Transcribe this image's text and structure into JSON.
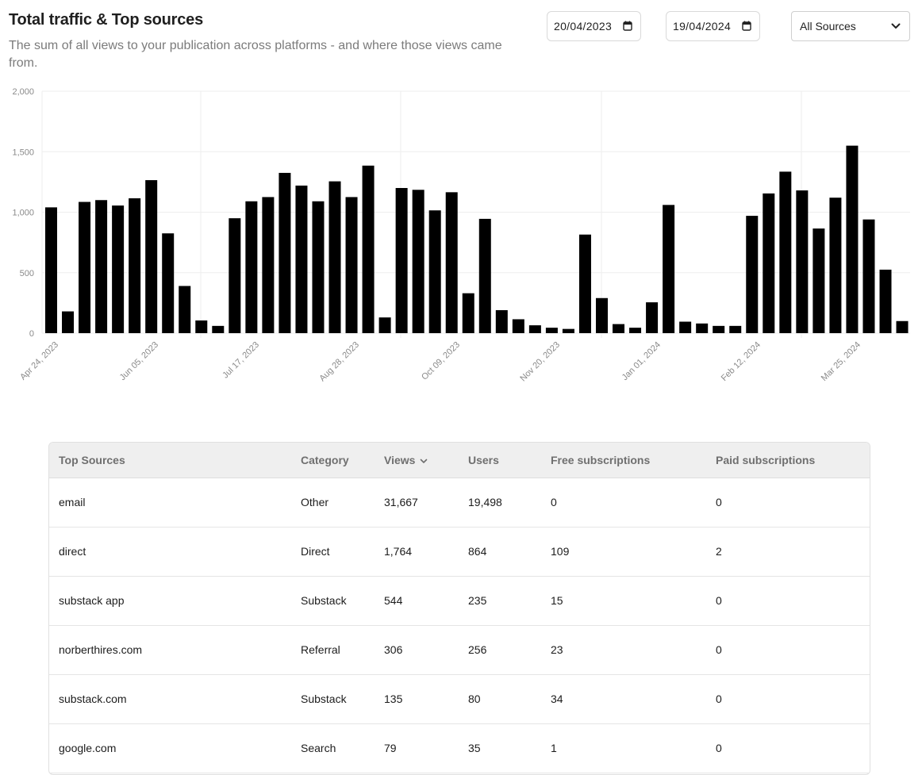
{
  "header": {
    "title": "Total traffic & Top sources",
    "subtitle": "The sum of all views to your publication across platforms - and where those views came from."
  },
  "filters": {
    "start_date": "20/04/2023",
    "end_date": "19/04/2024",
    "source_select": "All Sources"
  },
  "chart_data": {
    "type": "bar",
    "ylim": [
      0,
      2000
    ],
    "yticks": [
      "0",
      "500",
      "1,000",
      "1,500",
      "2,000"
    ],
    "x_tick_labels": [
      "Apr 24, 2023",
      "Jun 05, 2023",
      "Jul 17, 2023",
      "Aug 28, 2023",
      "Oct 09, 2023",
      "Nov 20, 2023",
      "Jan 01, 2024",
      "Feb 12, 2024",
      "Mar 25, 2024"
    ],
    "grid": true,
    "bar_color": "#000000",
    "values": [
      1040,
      180,
      1085,
      1100,
      1055,
      1115,
      1265,
      825,
      390,
      105,
      60,
      950,
      1090,
      1125,
      1325,
      1220,
      1090,
      1255,
      1125,
      1385,
      130,
      1200,
      1185,
      1015,
      1165,
      330,
      945,
      190,
      115,
      65,
      45,
      35,
      815,
      290,
      75,
      45,
      255,
      1060,
      95,
      80,
      60,
      60,
      970,
      1155,
      1335,
      1180,
      865,
      1120,
      1550,
      940,
      525,
      100
    ]
  },
  "table": {
    "columns": [
      "Top Sources",
      "Category",
      "Views",
      "Users",
      "Free subscriptions",
      "Paid subscriptions"
    ],
    "rows": [
      [
        "email",
        "Other",
        "31,667",
        "19,498",
        "0",
        "0"
      ],
      [
        "direct",
        "Direct",
        "1,764",
        "864",
        "109",
        "2"
      ],
      [
        "substack app",
        "Substack",
        "544",
        "235",
        "15",
        "0"
      ],
      [
        "norberthires.com",
        "Referral",
        "306",
        "256",
        "23",
        "0"
      ],
      [
        "substack.com",
        "Substack",
        "135",
        "80",
        "34",
        "0"
      ],
      [
        "google.com",
        "Search",
        "79",
        "35",
        "1",
        "0"
      ]
    ]
  }
}
